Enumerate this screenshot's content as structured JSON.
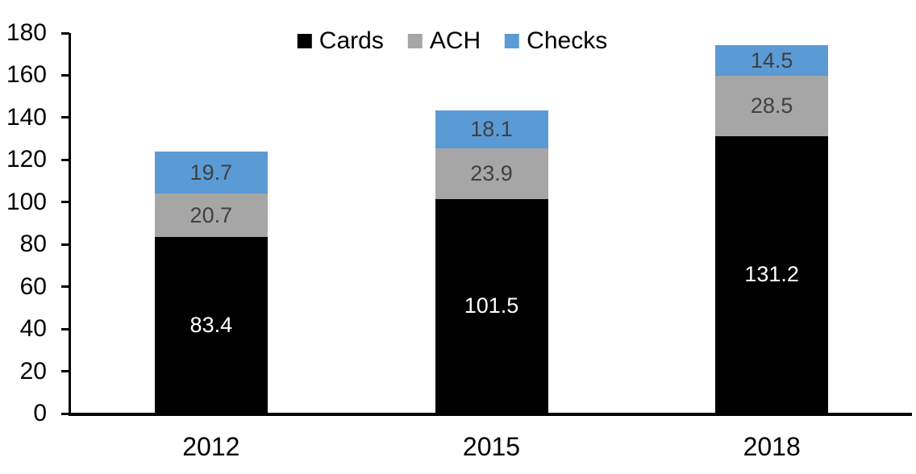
{
  "chart_data": {
    "type": "bar",
    "stacked": true,
    "title": "",
    "xlabel": "",
    "ylabel": "",
    "categories": [
      "2012",
      "2015",
      "2018"
    ],
    "series": [
      {
        "name": "Cards",
        "color": "#000000",
        "label_color": "#ffffff",
        "values": [
          83.4,
          101.5,
          131.2
        ]
      },
      {
        "name": "ACH",
        "color": "#a6a6a6",
        "label_color": "#404040",
        "values": [
          20.7,
          23.9,
          28.5
        ]
      },
      {
        "name": "Checks",
        "color": "#5b9bd5",
        "label_color": "#404040",
        "values": [
          19.7,
          18.1,
          14.5
        ]
      }
    ],
    "totals": [
      123.8,
      143.5,
      174.2
    ],
    "ylim": [
      0,
      180
    ],
    "yticks": [
      0,
      20,
      40,
      60,
      80,
      100,
      120,
      140,
      160,
      180
    ],
    "grid": false,
    "legend_position": "top-center",
    "data_labels": true,
    "axis_color": "#000000",
    "text_color": "#000000"
  }
}
